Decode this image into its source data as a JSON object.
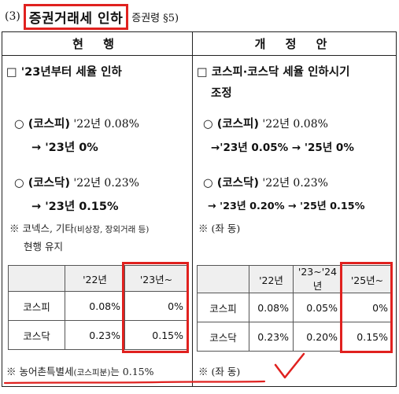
{
  "heading": {
    "number": "(3)",
    "title": "증권거래세 인하",
    "reference": "증권령 §5)"
  },
  "columns": {
    "current": "현 행",
    "revised": "개 정 안"
  },
  "current": {
    "main": "□ '23년부터 세율 인하",
    "kospi_label": "○ (코스피)",
    "kospi_line1_rest": " '22년 0.08%",
    "kospi_line2": "→ '23년 0%",
    "kosdaq_label": "○ (코스닥)",
    "kosdaq_line1_rest": " '22년 0.23%",
    "kosdaq_line2": "→ '23년 0.15%",
    "note_line1_a": "※ 코넥스, 기타",
    "note_line1_b": "(비상장, 장외거래 등)",
    "note_line2": "현행 유지",
    "table": {
      "headers": [
        "",
        "'22년",
        "'23년~"
      ],
      "rows": [
        [
          "코스피",
          "0.08%",
          "0%"
        ],
        [
          "코스닥",
          "0.23%",
          "0.15%"
        ]
      ]
    },
    "footer_a": "※ 농어촌특별세",
    "footer_b": "(코스피분)",
    "footer_c": "는 0.15%"
  },
  "revised": {
    "main_line1": "□ 코스피·코스닥 세율 인하시기",
    "main_line2": "조정",
    "kospi_label": "○ (코스피)",
    "kospi_line1_rest": " '22년 0.08%",
    "kospi_line2": "→'23년 0.05% → '25년 0%",
    "kosdaq_label": "○ (코스닥)",
    "kosdaq_line1_rest": " '22년 0.23%",
    "kosdaq_line2": "→ '23년 0.20% → '25년 0.15%",
    "note": "※ (좌 동)",
    "table": {
      "headers": [
        "",
        "'22년",
        "'23~'24년",
        "'25년~"
      ],
      "rows": [
        [
          "코스피",
          "0.08%",
          "0.05%",
          "0%"
        ],
        [
          "코스닥",
          "0.23%",
          "0.20%",
          "0.15%"
        ]
      ]
    },
    "footer": "※ (좌 동)"
  },
  "colors": {
    "highlight": "#e0211f",
    "header_fill": "#efefef"
  }
}
